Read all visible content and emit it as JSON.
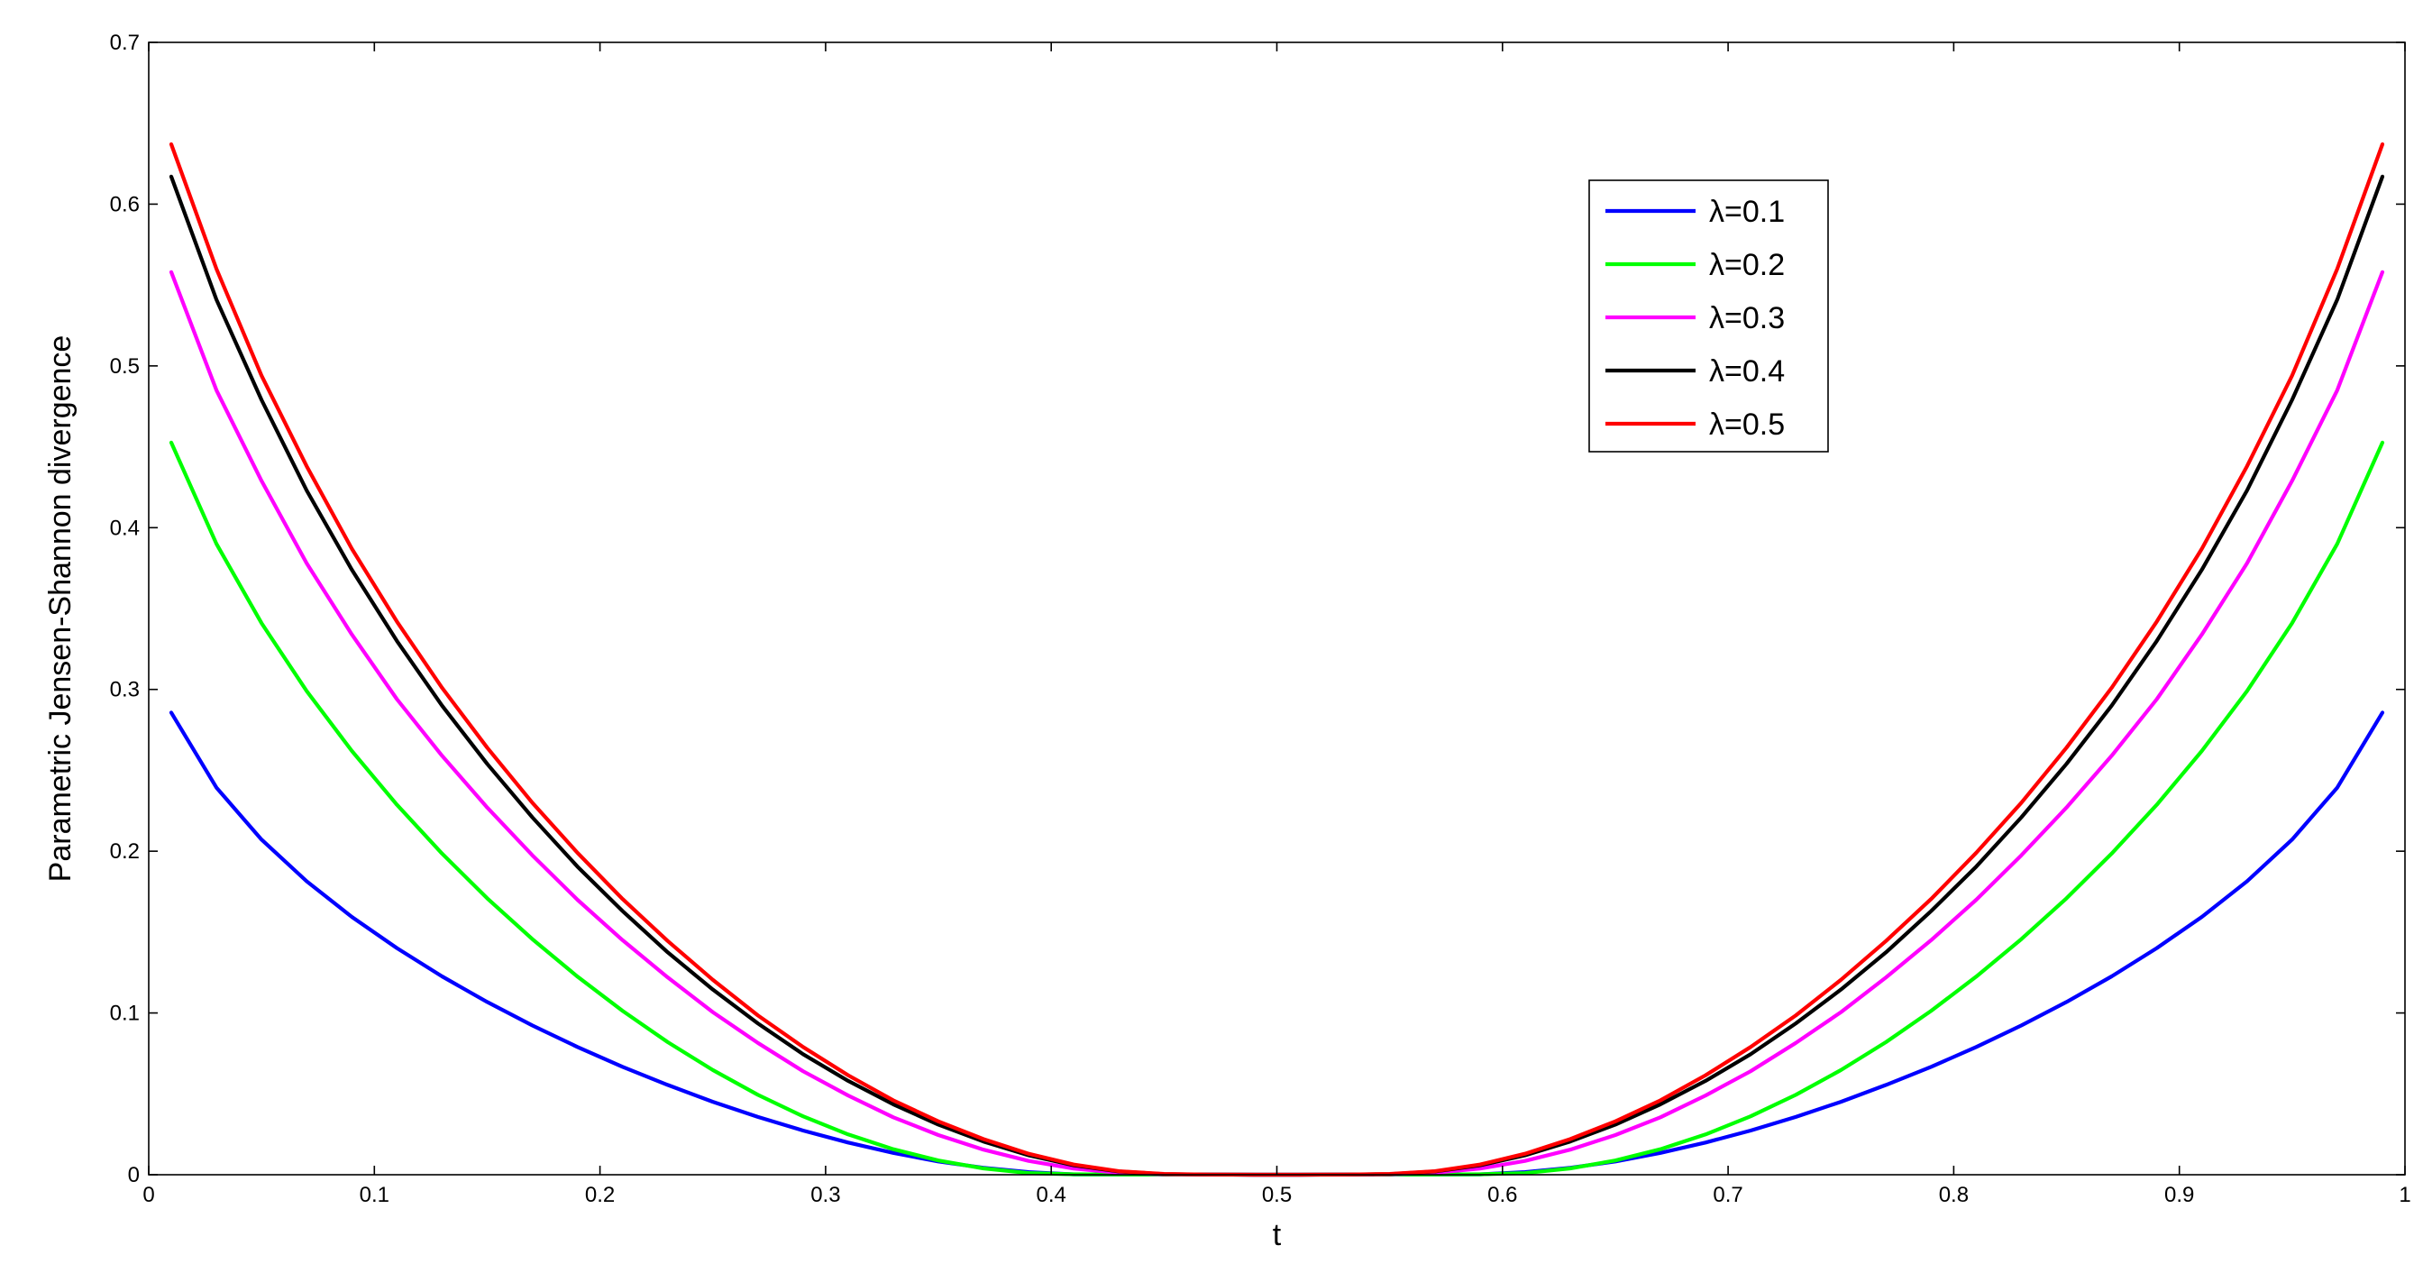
{
  "chart_data": {
    "type": "line",
    "title": "",
    "xlabel": "t",
    "ylabel": "Parametric Jensen-Shannon divergence",
    "xlim": [
      0,
      1
    ],
    "ylim": [
      0,
      0.7
    ],
    "xticks": [
      0,
      0.1,
      0.2,
      0.3,
      0.4,
      0.5,
      0.6,
      0.7,
      0.8,
      0.9,
      1
    ],
    "xtick_labels": [
      "0",
      "0.1",
      "0.2",
      "0.3",
      "0.4",
      "0.5",
      "0.6",
      "0.7",
      "0.8",
      "0.9",
      "1"
    ],
    "yticks": [
      0,
      0.1,
      0.2,
      0.3,
      0.4,
      0.5,
      0.6,
      0.7
    ],
    "ytick_labels": [
      "0",
      "0.1",
      "0.2",
      "0.3",
      "0.4",
      "0.5",
      "0.6",
      "0.7"
    ],
    "grid": false,
    "legend_position": "top-right",
    "x": [
      0.01,
      0.03,
      0.05,
      0.07,
      0.09,
      0.11,
      0.13,
      0.15,
      0.17,
      0.19,
      0.21,
      0.23,
      0.25,
      0.27,
      0.29,
      0.31,
      0.33,
      0.35,
      0.37,
      0.39,
      0.41,
      0.43,
      0.45,
      0.47,
      0.49,
      0.51,
      0.53,
      0.55,
      0.57,
      0.59,
      0.61,
      0.63,
      0.65,
      0.67,
      0.69,
      0.71,
      0.73,
      0.75,
      0.77,
      0.79,
      0.81,
      0.83,
      0.85,
      0.87,
      0.89,
      0.91,
      0.93,
      0.95,
      0.97,
      0.99
    ],
    "series": [
      {
        "name": "λ=0.1",
        "color": "#0000ff",
        "values": [
          0.2857,
          0.2393,
          0.2072,
          0.1814,
          0.1594,
          0.1401,
          0.1226,
          0.1068,
          0.0923,
          0.079,
          0.0667,
          0.0555,
          0.0451,
          0.0357,
          0.0273,
          0.0199,
          0.0135,
          0.0082,
          0.0043,
          0.0016,
          0.0002,
          0.0001,
          0.0001,
          0.0001,
          2e-05,
          2e-05,
          0.0001,
          0.0001,
          0.0001,
          0.0002,
          0.0016,
          0.0043,
          0.0082,
          0.0135,
          0.0199,
          0.0273,
          0.0357,
          0.0451,
          0.0555,
          0.0667,
          0.079,
          0.0923,
          0.1068,
          0.1226,
          0.1401,
          0.1594,
          0.1814,
          0.2072,
          0.2393,
          0.2857
        ]
      },
      {
        "name": "λ=0.2",
        "color": "#00ff00",
        "values": [
          0.4526,
          0.39,
          0.341,
          0.299,
          0.262,
          0.2287,
          0.1985,
          0.1709,
          0.1457,
          0.1225,
          0.1013,
          0.082,
          0.0647,
          0.0494,
          0.0361,
          0.0249,
          0.0158,
          0.0088,
          0.0039,
          0.001,
          0.0003,
          0.0001,
          0.0001,
          5e-05,
          1e-05,
          1e-05,
          5e-05,
          0.0001,
          0.0001,
          0.0003,
          0.001,
          0.0039,
          0.0088,
          0.0158,
          0.0249,
          0.0361,
          0.0494,
          0.0647,
          0.082,
          0.1013,
          0.1225,
          0.1457,
          0.1709,
          0.1985,
          0.2287,
          0.262,
          0.299,
          0.341,
          0.39,
          0.4526
        ]
      },
      {
        "name": "λ=0.3",
        "color": "#ff00ff",
        "values": [
          0.558,
          0.485,
          0.429,
          0.378,
          0.334,
          0.294,
          0.259,
          0.227,
          0.1975,
          0.17,
          0.145,
          0.122,
          0.1005,
          0.0815,
          0.064,
          0.049,
          0.0355,
          0.0245,
          0.0155,
          0.0085,
          0.0038,
          0.0012,
          0.0003,
          0.0001,
          1e-05,
          1e-05,
          0.0001,
          0.0003,
          0.0012,
          0.0038,
          0.0085,
          0.0155,
          0.0245,
          0.0355,
          0.049,
          0.064,
          0.0815,
          0.1005,
          0.122,
          0.145,
          0.17,
          0.1975,
          0.227,
          0.259,
          0.294,
          0.334,
          0.378,
          0.429,
          0.485,
          0.558
        ]
      },
      {
        "name": "λ=0.4",
        "color": "#000000",
        "values": [
          0.617,
          0.541,
          0.479,
          0.423,
          0.374,
          0.33,
          0.29,
          0.254,
          0.221,
          0.1905,
          0.163,
          0.1375,
          0.1145,
          0.0935,
          0.0745,
          0.058,
          0.0435,
          0.031,
          0.0205,
          0.012,
          0.0058,
          0.002,
          0.0004,
          0.0001,
          1e-05,
          1e-05,
          0.0001,
          0.0004,
          0.002,
          0.0058,
          0.012,
          0.0205,
          0.031,
          0.0435,
          0.058,
          0.0745,
          0.0935,
          0.1145,
          0.1375,
          0.163,
          0.1905,
          0.221,
          0.254,
          0.29,
          0.33,
          0.374,
          0.423,
          0.479,
          0.541,
          0.617
        ]
      },
      {
        "name": "λ=0.5",
        "color": "#ff0000",
        "values": [
          0.637,
          0.56,
          0.494,
          0.438,
          0.387,
          0.342,
          0.301,
          0.264,
          0.23,
          0.199,
          0.1705,
          0.1445,
          0.1205,
          0.0985,
          0.079,
          0.0615,
          0.046,
          0.033,
          0.022,
          0.013,
          0.0063,
          0.0022,
          0.0005,
          0.0001,
          1e-05,
          1e-05,
          0.0001,
          0.0005,
          0.0022,
          0.0063,
          0.013,
          0.022,
          0.033,
          0.046,
          0.0615,
          0.079,
          0.0985,
          0.1205,
          0.1445,
          0.1705,
          0.199,
          0.23,
          0.264,
          0.301,
          0.342,
          0.387,
          0.438,
          0.494,
          0.56,
          0.637
        ]
      }
    ]
  }
}
